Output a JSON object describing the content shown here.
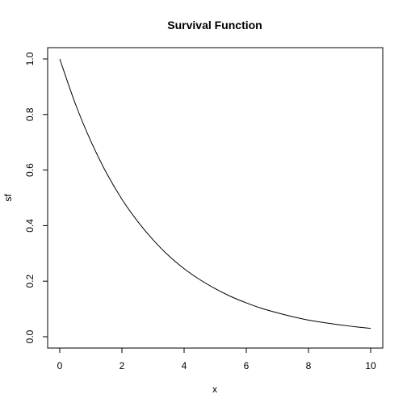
{
  "chart_data": {
    "type": "line",
    "title": "Survival Function",
    "xlabel": "x",
    "ylabel": "sf",
    "xlim": [
      0,
      10
    ],
    "ylim": [
      0,
      1
    ],
    "x_ticks": [
      0,
      2,
      4,
      6,
      8,
      10
    ],
    "y_ticks": [
      0.0,
      0.2,
      0.4,
      0.6,
      0.8,
      1.0
    ],
    "x_tick_labels": [
      "0",
      "2",
      "4",
      "6",
      "8",
      "10"
    ],
    "y_tick_labels": [
      "0.0",
      "0.2",
      "0.4",
      "0.6",
      "0.8",
      "1.0"
    ],
    "grid": false,
    "legend": "none",
    "series": [
      {
        "color": "#000000",
        "x": [
          0,
          0.5,
          1,
          1.5,
          2,
          2.5,
          3,
          3.5,
          4,
          4.5,
          5,
          5.5,
          6,
          6.5,
          7,
          7.5,
          8,
          8.5,
          9,
          9.5,
          10
        ],
        "y": [
          1.0,
          0.839,
          0.704,
          0.59,
          0.495,
          0.416,
          0.349,
          0.292,
          0.245,
          0.206,
          0.173,
          0.145,
          0.122,
          0.102,
          0.086,
          0.072,
          0.06,
          0.051,
          0.043,
          0.036,
          0.03
        ]
      }
    ]
  }
}
